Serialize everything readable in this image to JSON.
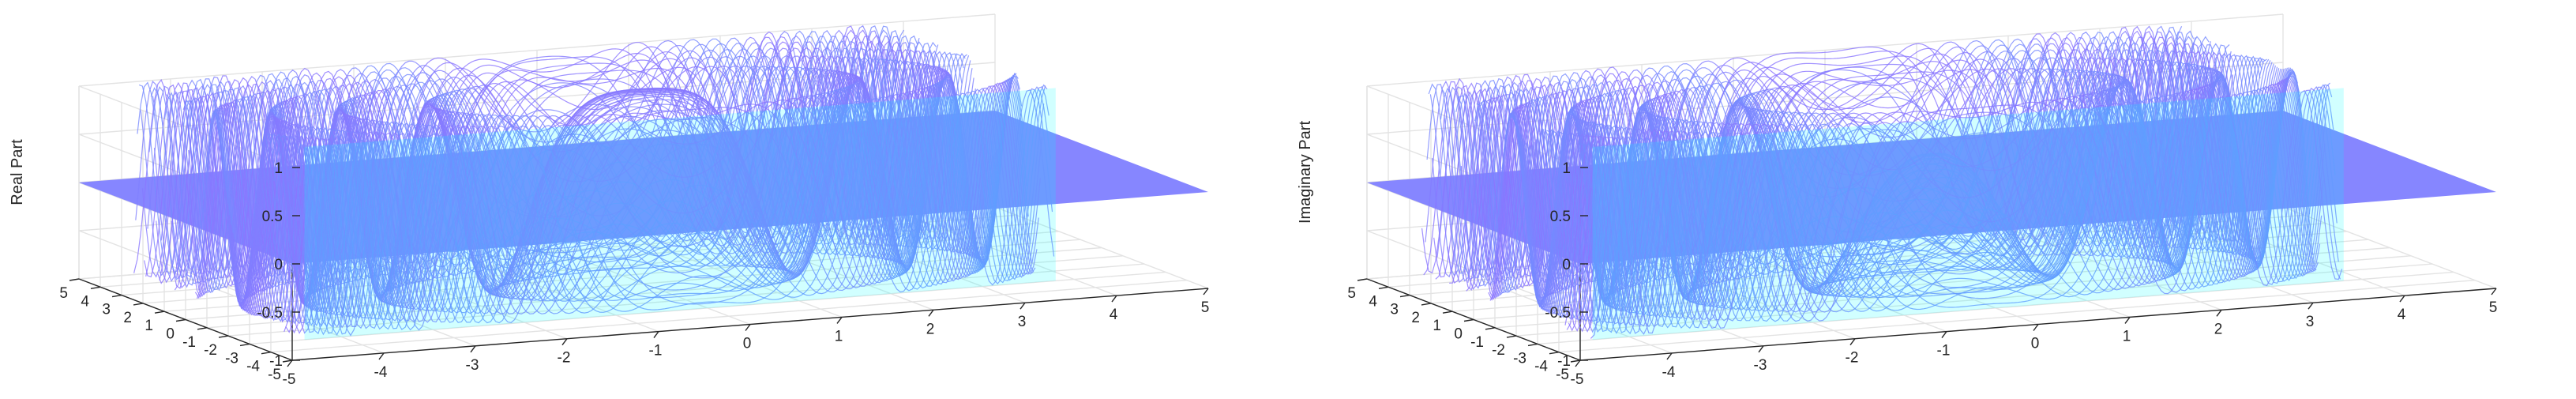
{
  "chart_data": [
    {
      "type": "surface",
      "title": "",
      "xlabel": "",
      "ylabel": "",
      "zlabel": "Real Part",
      "xlim": [
        -5,
        5
      ],
      "ylim": [
        -5,
        5
      ],
      "zlim": [
        -1,
        1
      ],
      "xticks": [
        -5,
        -4,
        -3,
        -2,
        -1,
        0,
        1,
        2,
        3,
        4,
        5
      ],
      "yticks": [
        -5,
        -4,
        -3,
        -2,
        -1,
        0,
        1,
        2,
        3,
        4,
        5
      ],
      "zticks": [
        -1,
        -0.5,
        0,
        0.5,
        1
      ],
      "colormap": "cool",
      "grid": true,
      "surface_description_values": {
        "y_band_start": -3,
        "y_band_end": 5,
        "plane_value_outside_band": 0
      }
    },
    {
      "type": "surface",
      "title": "",
      "xlabel": "",
      "ylabel": "",
      "zlabel": "Imaginary Part",
      "xlim": [
        -5,
        5
      ],
      "ylim": [
        -5,
        5
      ],
      "zlim": [
        -1,
        1
      ],
      "xticks": [
        -5,
        -4,
        -3,
        -2,
        -1,
        0,
        1,
        2,
        3,
        4,
        5
      ],
      "yticks": [
        -5,
        -4,
        -3,
        -2,
        -1,
        0,
        1,
        2,
        3,
        4,
        5
      ],
      "zticks": [
        -1,
        -0.5,
        0,
        0.5,
        1
      ],
      "colormap": "cool",
      "grid": true,
      "surface_description_values": {
        "y_band_start": -3,
        "y_band_end": 5,
        "plane_value_outside_band": 0
      }
    }
  ],
  "colors": {
    "plane": "#8080ff",
    "cmap_low": "#00ffff",
    "cmap_high": "#ff00ff",
    "axis": "#262626",
    "grid": "#e3e3e3"
  }
}
